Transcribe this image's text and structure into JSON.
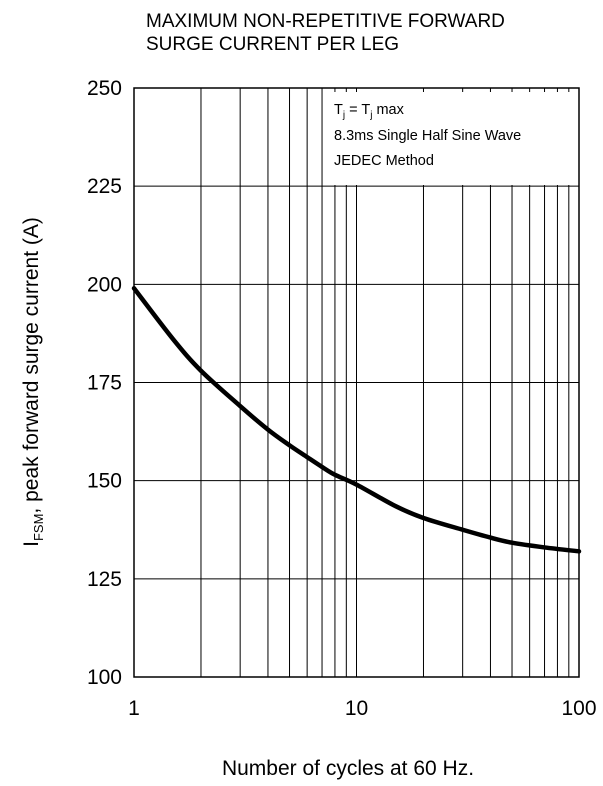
{
  "chart_data": {
    "type": "line",
    "title_lines": [
      "MAXIMUM NON-REPETITIVE FORWARD",
      "SURGE CURRENT PER LEG"
    ],
    "ylabel": {
      "symbol": "I",
      "subscript": "FSM",
      "text": ", peak forward surge current (A)"
    },
    "xlabel": "Number of cycles at 60 Hz.",
    "x_scale": "log",
    "xlim": [
      1,
      100
    ],
    "ylim": [
      100,
      250
    ],
    "x_ticks": [
      1,
      10,
      100
    ],
    "x_tick_labels": [
      "1",
      "10",
      "100"
    ],
    "y_ticks": [
      100,
      125,
      150,
      175,
      200,
      225,
      250
    ],
    "y_tick_labels": [
      "100",
      "125",
      "150",
      "175",
      "200",
      "225",
      "250"
    ],
    "grid": true,
    "annotations": {
      "condition_line1": {
        "a": "T",
        "a_sub": "j",
        "eq": " = ",
        "b": "T",
        "b_sub": "j",
        "tail": " max"
      },
      "condition_line2": "8.3ms Single Half Sine Wave",
      "condition_line3": "JEDEC Method",
      "placement": "top-right"
    },
    "series": [
      {
        "x": [
          1,
          1.5,
          2,
          3,
          4,
          5,
          6,
          7,
          8,
          10,
          15,
          20,
          30,
          40,
          50,
          70,
          100
        ],
        "y": [
          199,
          186,
          178,
          169,
          163,
          159,
          156,
          153.5,
          151.5,
          149,
          143.5,
          140.5,
          137.5,
          135.5,
          134.2,
          133,
          132
        ]
      }
    ]
  }
}
